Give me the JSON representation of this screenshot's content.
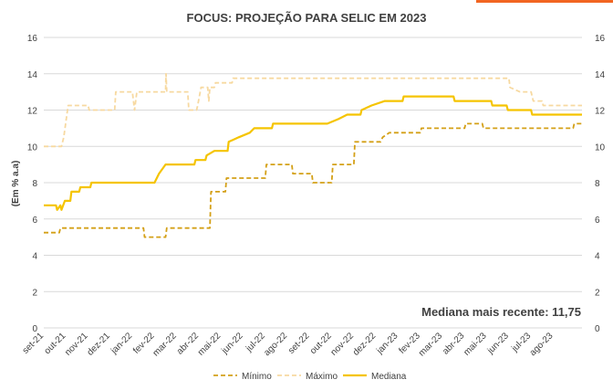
{
  "chart_data": {
    "type": "line",
    "title": "FOCUS: PROJEÇÃO PARA SELIC EM 2023",
    "ylabel": "(Em % a.a)",
    "ylim": [
      0,
      16
    ],
    "yticks": [
      0,
      2,
      4,
      6,
      8,
      10,
      12,
      14,
      16
    ],
    "xlim": [
      0,
      24.3
    ],
    "x_tick_labels": [
      "set-21",
      "out-21",
      "nov-21",
      "dez-21",
      "jan-22",
      "fev-22",
      "mar-22",
      "abr-22",
      "mai-22",
      "jun-22",
      "jul-22",
      "ago-22",
      "set-22",
      "out-22",
      "nov-22",
      "dez-22",
      "jan-23",
      "fev-23",
      "mar-23",
      "abr-23",
      "mai-23",
      "jun-23",
      "jul-23",
      "ago-23"
    ],
    "grid": "horizontal",
    "legend_position": "bottom",
    "annotation": "Mediana mais recente: 11,75",
    "colors": {
      "minimo": "#D4A017",
      "maximo": "#F7D9A0",
      "mediana": "#F5C400",
      "grid": "#D9D9D9",
      "accent": "#F26522"
    },
    "series": [
      {
        "name": "Mínimo",
        "style": "dashed",
        "points": [
          [
            0,
            5.25
          ],
          [
            0.7,
            5.25
          ],
          [
            0.75,
            5.5
          ],
          [
            4.5,
            5.5
          ],
          [
            4.55,
            5.0
          ],
          [
            5.5,
            5.0
          ],
          [
            5.55,
            5.5
          ],
          [
            7.5,
            5.5
          ],
          [
            7.55,
            7.5
          ],
          [
            8.2,
            7.5
          ],
          [
            8.25,
            8.25
          ],
          [
            10.0,
            8.25
          ],
          [
            10.05,
            9.0
          ],
          [
            11.2,
            9.0
          ],
          [
            11.25,
            8.5
          ],
          [
            12.1,
            8.5
          ],
          [
            12.15,
            8.0
          ],
          [
            13.0,
            8.0
          ],
          [
            13.05,
            9.0
          ],
          [
            14.0,
            9.0
          ],
          [
            14.05,
            10.25
          ],
          [
            15.2,
            10.25
          ],
          [
            15.3,
            10.5
          ],
          [
            15.6,
            10.75
          ],
          [
            17.0,
            10.75
          ],
          [
            17.05,
            11.0
          ],
          [
            19.0,
            11.0
          ],
          [
            19.05,
            11.25
          ],
          [
            19.8,
            11.25
          ],
          [
            19.85,
            11.0
          ],
          [
            23.9,
            11.0
          ],
          [
            23.95,
            11.25
          ],
          [
            24.3,
            11.25
          ]
        ]
      },
      {
        "name": "Máximo",
        "style": "dashed",
        "points": [
          [
            0,
            10.0
          ],
          [
            0.8,
            10.0
          ],
          [
            0.9,
            10.5
          ],
          [
            1.1,
            12.25
          ],
          [
            2.0,
            12.25
          ],
          [
            2.05,
            12.0
          ],
          [
            3.2,
            12.0
          ],
          [
            3.25,
            13.0
          ],
          [
            4.0,
            13.0
          ],
          [
            4.1,
            12.0
          ],
          [
            4.2,
            13.0
          ],
          [
            5.5,
            13.0
          ],
          [
            5.52,
            14.0
          ],
          [
            5.55,
            13.0
          ],
          [
            6.5,
            13.0
          ],
          [
            6.55,
            12.0
          ],
          [
            6.9,
            12.0
          ],
          [
            6.95,
            12.25
          ],
          [
            7.1,
            13.25
          ],
          [
            7.4,
            13.25
          ],
          [
            7.45,
            12.5
          ],
          [
            7.5,
            13.25
          ],
          [
            7.7,
            13.25
          ],
          [
            7.75,
            13.5
          ],
          [
            8.5,
            13.5
          ],
          [
            8.55,
            13.75
          ],
          [
            21.0,
            13.75
          ],
          [
            21.05,
            13.25
          ],
          [
            21.5,
            13.0
          ],
          [
            22.0,
            13.0
          ],
          [
            22.1,
            12.5
          ],
          [
            22.5,
            12.5
          ],
          [
            22.55,
            12.25
          ],
          [
            24.3,
            12.25
          ]
        ]
      },
      {
        "name": "Mediana",
        "style": "solid",
        "points": [
          [
            0,
            6.75
          ],
          [
            0.55,
            6.75
          ],
          [
            0.6,
            6.5
          ],
          [
            0.75,
            6.75
          ],
          [
            0.8,
            6.5
          ],
          [
            0.95,
            7.0
          ],
          [
            1.2,
            7.0
          ],
          [
            1.25,
            7.5
          ],
          [
            1.6,
            7.5
          ],
          [
            1.65,
            7.75
          ],
          [
            2.1,
            7.75
          ],
          [
            2.15,
            8.0
          ],
          [
            5.0,
            8.0
          ],
          [
            5.2,
            8.5
          ],
          [
            5.5,
            9.0
          ],
          [
            6.8,
            9.0
          ],
          [
            6.85,
            9.25
          ],
          [
            7.3,
            9.25
          ],
          [
            7.35,
            9.5
          ],
          [
            7.7,
            9.75
          ],
          [
            8.3,
            9.75
          ],
          [
            8.35,
            10.25
          ],
          [
            8.8,
            10.5
          ],
          [
            9.3,
            10.75
          ],
          [
            9.5,
            11.0
          ],
          [
            10.3,
            11.0
          ],
          [
            10.35,
            11.25
          ],
          [
            12.8,
            11.25
          ],
          [
            13.3,
            11.5
          ],
          [
            13.7,
            11.75
          ],
          [
            14.3,
            11.75
          ],
          [
            14.35,
            12.0
          ],
          [
            14.8,
            12.25
          ],
          [
            15.4,
            12.5
          ],
          [
            16.2,
            12.5
          ],
          [
            16.25,
            12.75
          ],
          [
            18.5,
            12.75
          ],
          [
            18.55,
            12.5
          ],
          [
            20.2,
            12.5
          ],
          [
            20.25,
            12.25
          ],
          [
            20.9,
            12.25
          ],
          [
            20.95,
            12.0
          ],
          [
            22.0,
            12.0
          ],
          [
            22.05,
            11.75
          ],
          [
            24.3,
            11.75
          ]
        ]
      }
    ]
  }
}
